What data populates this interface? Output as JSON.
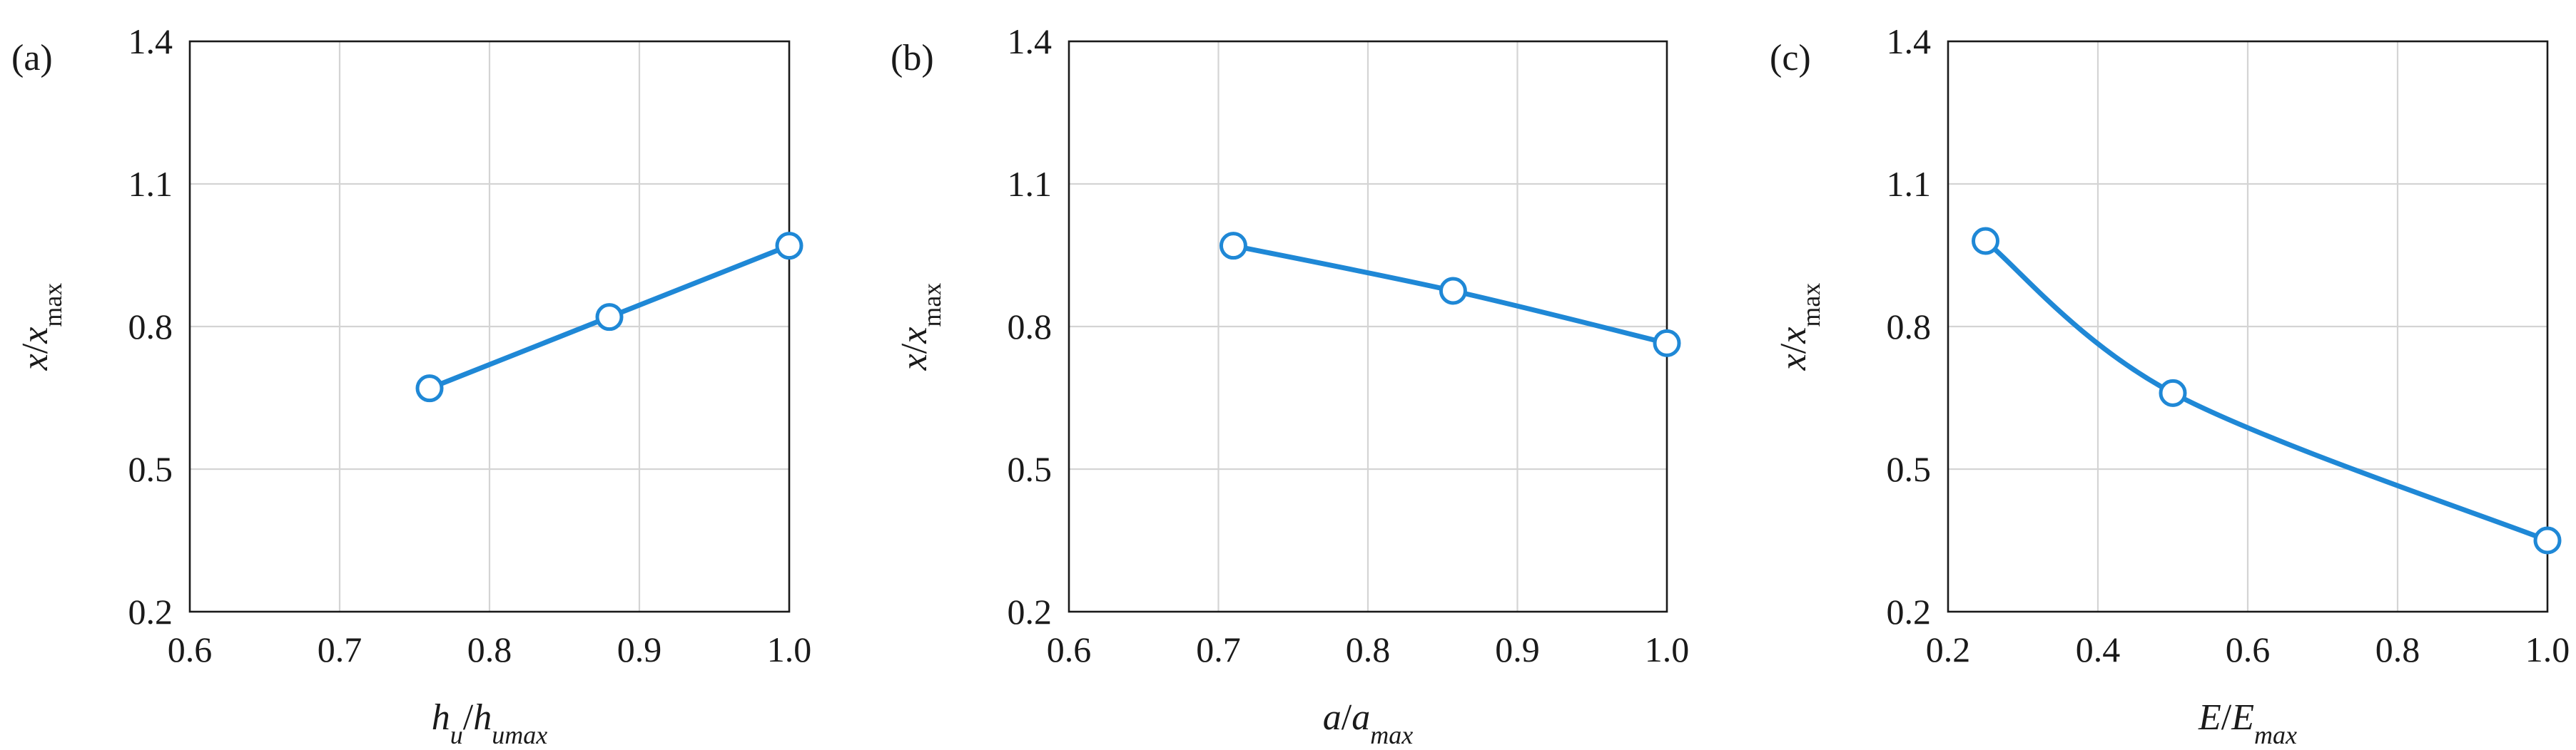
{
  "chart_data": [
    {
      "type": "line",
      "panel_label": "(a)",
      "xlabel": {
        "base": "h",
        "sub": "u",
        "sep": "/",
        "base2": "h",
        "sub2": "umax"
      },
      "ylabel": {
        "base": "x",
        "sep": "/",
        "base2": "x",
        "sub2": "max"
      },
      "xlim": [
        0.6,
        1.0
      ],
      "ylim": [
        0.2,
        1.4
      ],
      "x_ticks": [
        "0.6",
        "0.7",
        "0.8",
        "0.9",
        "1.0"
      ],
      "y_ticks": [
        "0.2",
        "0.5",
        "0.8",
        "1.1",
        "1.4"
      ],
      "grid": true,
      "series": [
        {
          "color": "#1f88d6",
          "x": [
            0.76,
            0.88,
            1.0
          ],
          "y": [
            0.67,
            0.82,
            0.97
          ]
        }
      ]
    },
    {
      "type": "line",
      "panel_label": "(b)",
      "xlabel": {
        "base": "a",
        "sub": "",
        "sep": "/",
        "base2": "a",
        "sub2": "max"
      },
      "ylabel": {
        "base": "x",
        "sep": "/",
        "base2": "x",
        "sub2": "max"
      },
      "xlim": [
        0.6,
        1.0
      ],
      "ylim": [
        0.2,
        1.4
      ],
      "x_ticks": [
        "0.6",
        "0.7",
        "0.8",
        "0.9",
        "1.0"
      ],
      "y_ticks": [
        "0.2",
        "0.5",
        "0.8",
        "1.1",
        "1.4"
      ],
      "grid": true,
      "series": [
        {
          "color": "#1f88d6",
          "x": [
            0.71,
            0.857,
            1.0
          ],
          "y": [
            0.97,
            0.875,
            0.765
          ]
        }
      ]
    },
    {
      "type": "line",
      "panel_label": "(c)",
      "xlabel": {
        "base": "E",
        "sub": "",
        "sep": "/",
        "base2": "E",
        "sub2": "max"
      },
      "ylabel": {
        "base": "x",
        "sep": "/",
        "base2": "x",
        "sub2": "max"
      },
      "xlim": [
        0.2,
        1.0
      ],
      "ylim": [
        0.2,
        1.4
      ],
      "x_ticks": [
        "0.2",
        "0.4",
        "0.6",
        "0.8",
        "1.0"
      ],
      "y_ticks": [
        "0.2",
        "0.5",
        "0.8",
        "1.1",
        "1.4"
      ],
      "grid": true,
      "series": [
        {
          "color": "#1f88d6",
          "x": [
            0.25,
            0.5,
            1.0
          ],
          "y": [
            0.98,
            0.66,
            0.35
          ]
        }
      ]
    }
  ]
}
